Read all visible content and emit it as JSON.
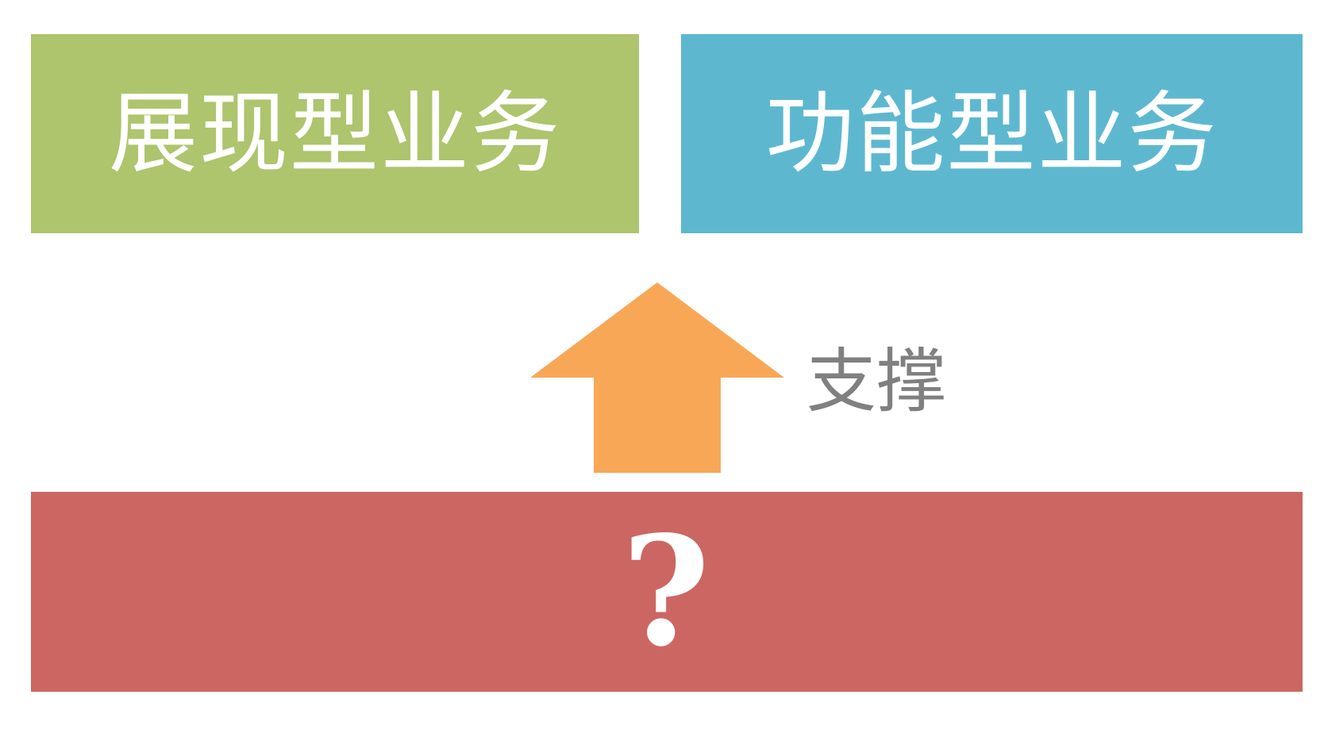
{
  "diagram": {
    "top_left": {
      "label": "展现型业务",
      "color": "#aec46d"
    },
    "top_right": {
      "label": "功能型业务",
      "color": "#5db8cf"
    },
    "bottom": {
      "label": "?",
      "color": "#cc6662"
    },
    "arrow": {
      "label": "支撑",
      "direction": "up",
      "color": "#f8a757",
      "label_color": "#808080"
    }
  }
}
